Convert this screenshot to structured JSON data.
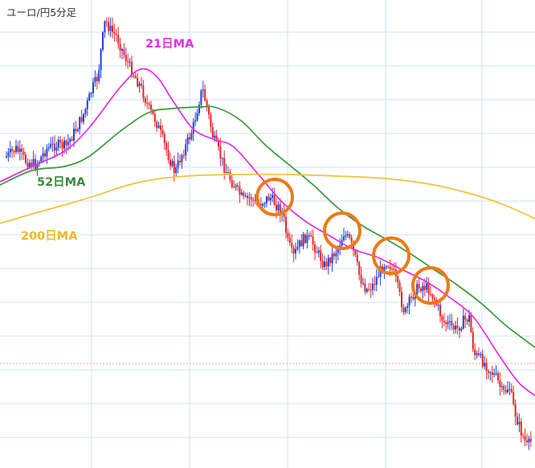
{
  "chart_data": {
    "type": "candlestick",
    "title": "ユーロ/円5分足",
    "grid": true,
    "legend_position": "inline",
    "colors": {
      "up": "#1f3fe0",
      "down": "#e0282a",
      "ma21": "#e62ce6",
      "ma52": "#3a9a3a",
      "ma200": "#f2c23a",
      "highlight_circle": "#f07a12",
      "grid": "#cfe3ee"
    },
    "moving_averages": [
      {
        "name": "21日MA",
        "points": [
          [
            0,
            226
          ],
          [
            40,
            207
          ],
          [
            80,
            188
          ],
          [
            110,
            160
          ],
          [
            150,
            108
          ],
          [
            175,
            86
          ],
          [
            195,
            95
          ],
          [
            215,
            125
          ],
          [
            240,
            160
          ],
          [
            265,
            173
          ],
          [
            290,
            182
          ],
          [
            320,
            215
          ],
          [
            350,
            250
          ],
          [
            380,
            275
          ],
          [
            410,
            293
          ],
          [
            440,
            310
          ],
          [
            470,
            320
          ],
          [
            500,
            335
          ],
          [
            530,
            350
          ],
          [
            560,
            370
          ],
          [
            590,
            395
          ],
          [
            620,
            440
          ],
          [
            645,
            475
          ],
          [
            666,
            492
          ]
        ]
      },
      {
        "name": "52日MA",
        "points": [
          [
            0,
            230
          ],
          [
            40,
            212
          ],
          [
            80,
            207
          ],
          [
            110,
            195
          ],
          [
            150,
            163
          ],
          [
            185,
            140
          ],
          [
            215,
            135
          ],
          [
            250,
            133
          ],
          [
            270,
            134
          ],
          [
            300,
            150
          ],
          [
            330,
            180
          ],
          [
            360,
            205
          ],
          [
            390,
            230
          ],
          [
            420,
            258
          ],
          [
            450,
            280
          ],
          [
            480,
            297
          ],
          [
            510,
            315
          ],
          [
            540,
            335
          ],
          [
            570,
            355
          ],
          [
            600,
            378
          ],
          [
            630,
            405
          ],
          [
            666,
            432
          ]
        ]
      },
      {
        "name": "200日MA",
        "points": [
          [
            0,
            278
          ],
          [
            40,
            266
          ],
          [
            80,
            255
          ],
          [
            120,
            243
          ],
          [
            160,
            230
          ],
          [
            200,
            222
          ],
          [
            250,
            218
          ],
          [
            300,
            217
          ],
          [
            360,
            217
          ],
          [
            420,
            219
          ],
          [
            480,
            222
          ],
          [
            540,
            230
          ],
          [
            600,
            245
          ],
          [
            640,
            260
          ],
          [
            666,
            272
          ]
        ]
      }
    ],
    "labels": [
      {
        "text": "21日MA",
        "series": "ma21"
      },
      {
        "text": "52日MA",
        "series": "ma52"
      },
      {
        "text": "200日MA",
        "series": "ma200"
      }
    ],
    "price_path": [
      [
        8,
        195
      ],
      [
        20,
        185
      ],
      [
        32,
        200
      ],
      [
        45,
        205
      ],
      [
        58,
        185
      ],
      [
        70,
        180
      ],
      [
        82,
        182
      ],
      [
        95,
        160
      ],
      [
        105,
        140
      ],
      [
        115,
        110
      ],
      [
        122,
        95
      ],
      [
        126,
        60
      ],
      [
        131,
        25
      ],
      [
        138,
        38
      ],
      [
        145,
        45
      ],
      [
        152,
        62
      ],
      [
        160,
        80
      ],
      [
        168,
        95
      ],
      [
        176,
        110
      ],
      [
        185,
        135
      ],
      [
        194,
        150
      ],
      [
        203,
        175
      ],
      [
        212,
        200
      ],
      [
        218,
        215
      ],
      [
        225,
        195
      ],
      [
        232,
        180
      ],
      [
        240,
        160
      ],
      [
        248,
        125
      ],
      [
        252,
        110
      ],
      [
        258,
        135
      ],
      [
        265,
        170
      ],
      [
        272,
        188
      ],
      [
        280,
        210
      ],
      [
        288,
        225
      ],
      [
        296,
        238
      ],
      [
        304,
        250
      ],
      [
        312,
        245
      ],
      [
        320,
        255
      ],
      [
        328,
        250
      ],
      [
        336,
        245
      ],
      [
        344,
        255
      ],
      [
        352,
        265
      ],
      [
        358,
        300
      ],
      [
        365,
        320
      ],
      [
        372,
        305
      ],
      [
        380,
        295
      ],
      [
        388,
        300
      ],
      [
        396,
        315
      ],
      [
        404,
        330
      ],
      [
        412,
        320
      ],
      [
        420,
        310
      ],
      [
        428,
        290
      ],
      [
        436,
        300
      ],
      [
        442,
        320
      ],
      [
        448,
        345
      ],
      [
        456,
        360
      ],
      [
        464,
        355
      ],
      [
        472,
        340
      ],
      [
        480,
        325
      ],
      [
        486,
        330
      ],
      [
        492,
        345
      ],
      [
        498,
        370
      ],
      [
        504,
        390
      ],
      [
        510,
        375
      ],
      [
        518,
        360
      ],
      [
        526,
        355
      ],
      [
        534,
        360
      ],
      [
        540,
        370
      ],
      [
        546,
        385
      ],
      [
        552,
        400
      ],
      [
        560,
        405
      ],
      [
        568,
        410
      ],
      [
        576,
        400
      ],
      [
        584,
        395
      ],
      [
        590,
        440
      ],
      [
        596,
        445
      ],
      [
        602,
        450
      ],
      [
        610,
        460
      ],
      [
        618,
        470
      ],
      [
        626,
        490
      ],
      [
        634,
        480
      ],
      [
        640,
        510
      ],
      [
        648,
        535
      ],
      [
        656,
        555
      ],
      [
        662,
        548
      ]
    ],
    "highlight_circles": [
      {
        "x": 342,
        "y": 245
      },
      {
        "x": 426,
        "y": 287
      },
      {
        "x": 487,
        "y": 318
      },
      {
        "x": 536,
        "y": 355
      }
    ]
  }
}
